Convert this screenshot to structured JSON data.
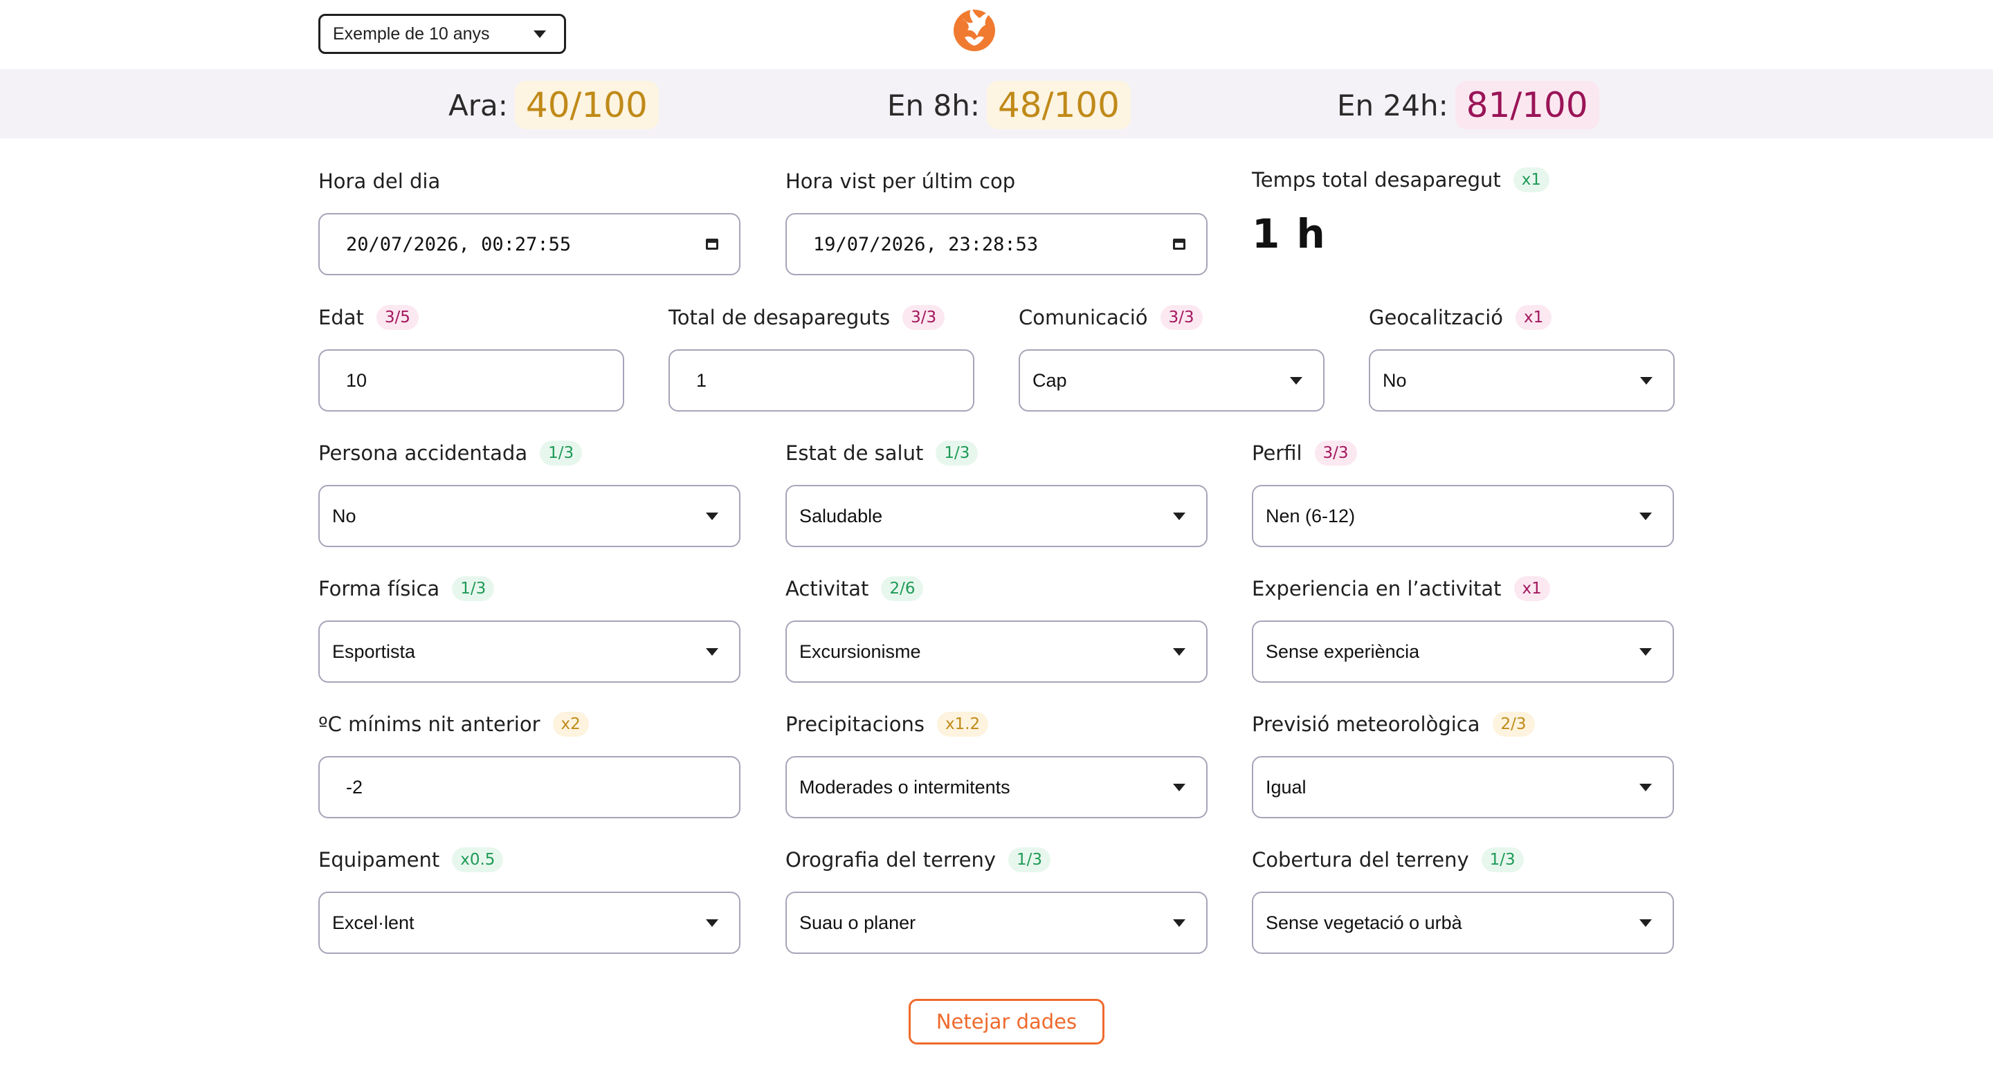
{
  "example_select": {
    "value": "Exemple de 10 anys"
  },
  "scores": [
    {
      "label": "Ara:",
      "value": "40/100"
    },
    {
      "label": "En 8h:",
      "value": "48/100"
    },
    {
      "label": "En 24h:",
      "value": "81/100"
    }
  ],
  "row1": {
    "hora_dia": {
      "label": "Hora del dia",
      "value": "20/07/2026, 00:27:55"
    },
    "hora_vist": {
      "label": "Hora vist per últim cop",
      "value": "19/07/2026, 23:28:53"
    },
    "temps_total": {
      "label": "Temps total desaparegut",
      "badge": "x1",
      "value": "1 h"
    }
  },
  "row2": {
    "edat": {
      "label": "Edat",
      "badge": "3/5",
      "value": "10"
    },
    "total_desapareguts": {
      "label": "Total de desapareguts",
      "badge": "3/3",
      "value": "1"
    },
    "comunicacio": {
      "label": "Comunicació",
      "badge": "3/3",
      "value": "Cap"
    },
    "geocalitzacio": {
      "label": "Geocalització",
      "badge": "x1",
      "value": "No"
    }
  },
  "row3": {
    "persona_accidentada": {
      "label": "Persona accidentada",
      "badge": "1/3",
      "value": "No"
    },
    "estat_salut": {
      "label": "Estat de salut",
      "badge": "1/3",
      "value": "Saludable"
    },
    "perfil": {
      "label": "Perfil",
      "badge": "3/3",
      "value": "Nen (6-12)"
    }
  },
  "row4": {
    "forma_fisica": {
      "label": "Forma física",
      "badge": "1/3",
      "value": "Esportista"
    },
    "activitat": {
      "label": "Activitat",
      "badge": "2/6",
      "value": "Excursionisme"
    },
    "experiencia": {
      "label": "Experiencia en l’activitat",
      "badge": "x1",
      "value": "Sense experiència"
    }
  },
  "row5": {
    "temp_minima": {
      "label": "ºC mínims nit anterior",
      "badge": "x2",
      "value": "-2"
    },
    "precipitacions": {
      "label": "Precipitacions",
      "badge": "x1.2",
      "value": "Moderades o intermitents"
    },
    "previsio": {
      "label": "Previsió meteorològica",
      "badge": "2/3",
      "value": "Igual"
    }
  },
  "row6": {
    "equipament": {
      "label": "Equipament",
      "badge": "x0.5",
      "value": "Excel·lent"
    },
    "orografia": {
      "label": "Orografia del terreny",
      "badge": "1/3",
      "value": "Suau o planer"
    },
    "cobertura": {
      "label": "Cobertura del terreny",
      "badge": "1/3",
      "value": "Sense vegetació o urbà"
    }
  },
  "clear_button": {
    "label": "Netejar dades"
  },
  "colors": {
    "accent": "#ef6a2c",
    "amber": "#c08a18",
    "rose": "#9a1457",
    "green": "#1e9a56"
  },
  "icons": {
    "logo": "phoenix-logo-icon",
    "dropdown": "caret-down-icon",
    "calendar": "calendar-icon"
  }
}
